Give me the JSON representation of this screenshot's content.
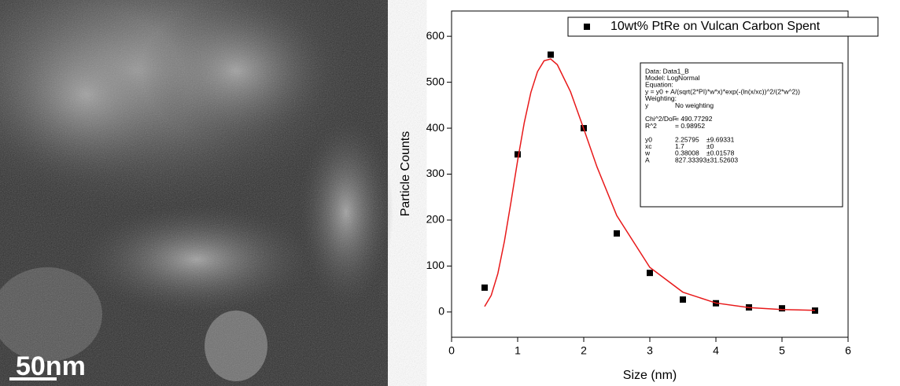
{
  "micrograph": {
    "scale_label": "50nm"
  },
  "chart_data": {
    "type": "scatter",
    "xlabel": "Size (nm)",
    "ylabel": "Particle Counts",
    "xlim": [
      0,
      6
    ],
    "xticks": [
      0,
      1,
      2,
      3,
      4,
      5,
      6
    ],
    "ylim": [
      -55,
      655
    ],
    "yticks": [
      0,
      100,
      200,
      300,
      400,
      500,
      600
    ],
    "legend": "top",
    "series": [
      {
        "name": "10wt% PtRe on Vulcan Carbon Spent",
        "color": "#000000",
        "marker": "square",
        "x": [
          0.5,
          1,
          1.5,
          2,
          2.5,
          3,
          3.5,
          4,
          4.5,
          5,
          5.5
        ],
        "values": [
          53,
          343,
          560,
          400,
          171,
          85,
          27,
          19,
          10,
          8,
          3
        ]
      },
      {
        "type": "line",
        "color": "#e8191a",
        "x": [
          0.5,
          0.6,
          0.7,
          0.8,
          0.9,
          1.0,
          1.1,
          1.2,
          1.3,
          1.4,
          1.5,
          1.6,
          1.8,
          2.0,
          2.2,
          2.5,
          3.0,
          3.5,
          4.0,
          4.5,
          5.0,
          5.5
        ],
        "values": [
          12.0,
          36.1,
          83.5,
          154.1,
          240.2,
          330.0,
          412.0,
          477.8,
          523.0,
          546.7,
          550.6,
          538.2,
          479.3,
          398.6,
          315.9,
          209.8,
          97.0,
          43.1,
          19.5,
          9.5,
          5.35,
          3.6
        ]
      }
    ],
    "annotation": [
      [
        [
          "Data: Data1_B"
        ],
        [
          "Model: LogNormal"
        ],
        [
          "Equation:"
        ],
        [
          "y = y0 + A/(sqrt(2*PI)*w*x)*exp(-(ln(x/xc))^2/(2*w^2))"
        ],
        [
          "Weighting:"
        ],
        [
          "y",
          "No weighting"
        ]
      ],
      [
        [
          "Chi^2/DoF",
          "= 490.77292"
        ],
        [
          "R^2",
          "=  0.98952"
        ]
      ],
      [
        [
          "y0",
          "2.25795",
          "±9.69331"
        ],
        [
          "xc",
          "1.7",
          "±0"
        ],
        [
          "w",
          "0.38008",
          "±0.01578"
        ],
        [
          "A",
          "827.33393",
          "±31.52603"
        ]
      ]
    ]
  }
}
